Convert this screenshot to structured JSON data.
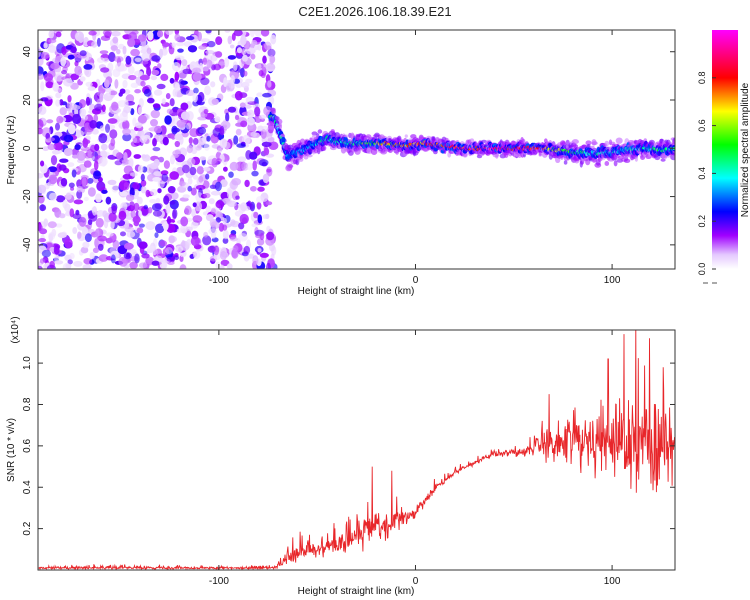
{
  "title": "C2E1.2026.106.18.39.E21",
  "chart_data": [
    {
      "type": "heatmap",
      "name": "spectrogram",
      "xlabel": "Height of straight line (km)",
      "ylabel": "Frequency (Hz)",
      "xlim": [
        -192,
        132
      ],
      "ylim": [
        -50,
        49
      ],
      "xticks": [
        -100,
        0,
        100
      ],
      "yticks": [
        -40,
        -20,
        0,
        20,
        40
      ],
      "colorbar": {
        "label": "Normalized spectral amplitude",
        "range": [
          0,
          1
        ],
        "ticks": [
          0.0,
          0.2,
          0.4,
          0.6,
          0.8
        ],
        "colors": [
          "#ffffff",
          "#a000ff",
          "#0000ff",
          "#00ffff",
          "#00ff00",
          "#ffff00",
          "#ff0000",
          "#ff00ff"
        ]
      },
      "noise_region_x": [
        -192,
        -72
      ],
      "signal_track": [
        {
          "x": -72,
          "y": 13,
          "amp": 0.5
        },
        {
          "x": -65,
          "y": -3,
          "amp": 0.35
        },
        {
          "x": -55,
          "y": 0,
          "amp": 0.35
        },
        {
          "x": -45,
          "y": 4,
          "amp": 0.45
        },
        {
          "x": -35,
          "y": 2,
          "amp": 0.45
        },
        {
          "x": -25,
          "y": 2,
          "amp": 0.55
        },
        {
          "x": -15,
          "y": 2,
          "amp": 0.7
        },
        {
          "x": -5,
          "y": 1,
          "amp": 0.75
        },
        {
          "x": 5,
          "y": 2,
          "amp": 0.8
        },
        {
          "x": 15,
          "y": 1,
          "amp": 0.85
        },
        {
          "x": 25,
          "y": 0,
          "amp": 0.9
        },
        {
          "x": 35,
          "y": 0,
          "amp": 0.95
        },
        {
          "x": 45,
          "y": 0,
          "amp": 0.95
        },
        {
          "x": 55,
          "y": 0,
          "amp": 0.9
        },
        {
          "x": 65,
          "y": 0,
          "amp": 0.85
        },
        {
          "x": 75,
          "y": -1,
          "amp": 0.55
        },
        {
          "x": 85,
          "y": -2,
          "amp": 0.45
        },
        {
          "x": 95,
          "y": -2,
          "amp": 0.4
        },
        {
          "x": 105,
          "y": -1,
          "amp": 0.4
        },
        {
          "x": 115,
          "y": 0,
          "amp": 0.45
        },
        {
          "x": 125,
          "y": -1,
          "amp": 0.5
        },
        {
          "x": 132,
          "y": 0,
          "amp": 0.45
        }
      ]
    },
    {
      "type": "line",
      "name": "snr",
      "xlabel": "Height of straight line (km)",
      "ylabel": "SNR (10 * v/v)",
      "y_multiplier": "(x10⁴)",
      "xlim": [
        -192,
        132
      ],
      "ylim": [
        0.0,
        1.16
      ],
      "xticks": [
        -100,
        0,
        100
      ],
      "yticks": [
        0.2,
        0.4,
        0.6,
        0.8,
        1.0
      ],
      "series": [
        {
          "name": "SNR",
          "color": "#e8262a",
          "envelope": {
            "x": [
              -192,
              -72,
              -65,
              -58,
              -50,
              -40,
              -30,
              -24,
              -20,
              -14,
              -10,
              -5,
              0,
              5,
              10,
              20,
              30,
              40,
              50,
              60,
              70,
              80,
              90,
              100,
              110,
              120,
              132
            ],
            "mean": [
              0.01,
              0.01,
              0.06,
              0.09,
              0.1,
              0.12,
              0.15,
              0.2,
              0.22,
              0.18,
              0.25,
              0.26,
              0.28,
              0.33,
              0.4,
              0.47,
              0.52,
              0.56,
              0.57,
              0.58,
              0.61,
              0.63,
              0.62,
              0.6,
              0.59,
              0.58,
              0.6
            ],
            "spread": [
              0.012,
              0.012,
              0.06,
              0.07,
              0.06,
              0.08,
              0.1,
              0.12,
              0.14,
              0.09,
              0.08,
              0.06,
              0.05,
              0.04,
              0.03,
              0.02,
              0.02,
              0.02,
              0.03,
              0.06,
              0.12,
              0.18,
              0.22,
              0.26,
              0.3,
              0.3,
              0.28
            ]
          },
          "spikes": [
            {
              "x": -22,
              "y": 0.5
            },
            {
              "x": -12,
              "y": 0.48
            },
            {
              "x": 68,
              "y": 0.85
            },
            {
              "x": 98,
              "y": 1.02
            },
            {
              "x": 106,
              "y": 1.14
            },
            {
              "x": 112,
              "y": 1.2
            },
            {
              "x": 119,
              "y": 1.12
            },
            {
              "x": 126,
              "y": 0.98
            }
          ],
          "samples": 1300
        }
      ]
    }
  ]
}
